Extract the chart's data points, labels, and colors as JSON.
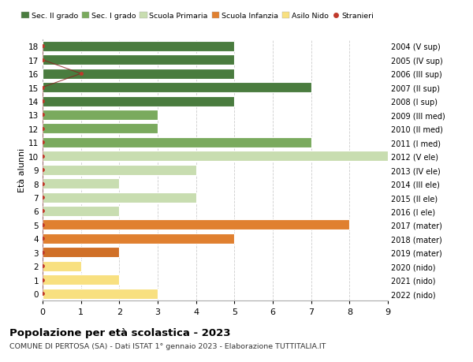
{
  "ages": [
    18,
    17,
    16,
    15,
    14,
    13,
    12,
    11,
    10,
    9,
    8,
    7,
    6,
    5,
    4,
    3,
    2,
    1,
    0
  ],
  "years": [
    "2004 (V sup)",
    "2005 (IV sup)",
    "2006 (III sup)",
    "2007 (II sup)",
    "2008 (I sup)",
    "2009 (III med)",
    "2010 (II med)",
    "2011 (I med)",
    "2012 (V ele)",
    "2013 (IV ele)",
    "2014 (III ele)",
    "2015 (II ele)",
    "2016 (I ele)",
    "2017 (mater)",
    "2018 (mater)",
    "2019 (mater)",
    "2020 (nido)",
    "2021 (nido)",
    "2022 (nido)"
  ],
  "bar_values": [
    5,
    5,
    5,
    7,
    5,
    3,
    3,
    7,
    9,
    4,
    2,
    4,
    2,
    8,
    5,
    2,
    1,
    2,
    3
  ],
  "bar_colors": [
    "#4a7c3f",
    "#4a7c3f",
    "#4a7c3f",
    "#4a7c3f",
    "#4a7c3f",
    "#7aaa5e",
    "#7aaa5e",
    "#7aaa5e",
    "#c8ddb0",
    "#c8ddb0",
    "#c8ddb0",
    "#c8ddb0",
    "#c8ddb0",
    "#e08030",
    "#e08030",
    "#d07028",
    "#f8e080",
    "#f8e080",
    "#f8e080"
  ],
  "stranieri_x": [
    0,
    0,
    1,
    0,
    0,
    0,
    0,
    0,
    0,
    0,
    0,
    0,
    0,
    0,
    0,
    0,
    0,
    0,
    0
  ],
  "stranieri_ages": [
    18,
    17,
    16,
    15,
    14,
    13,
    12,
    11,
    10,
    9,
    8,
    7,
    6,
    5,
    4,
    3,
    2,
    1,
    0
  ],
  "legend_labels": [
    "Sec. II grado",
    "Sec. I grado",
    "Scuola Primaria",
    "Scuola Infanzia",
    "Asilo Nido",
    "Stranieri"
  ],
  "legend_colors": [
    "#4a7c3f",
    "#7aaa5e",
    "#c8ddb0",
    "#e08030",
    "#f8e080",
    "#c0392b"
  ],
  "title": "Popolazione per età scolastica - 2023",
  "subtitle": "COMUNE DI PERTOSA (SA) - Dati ISTAT 1° gennaio 2023 - Elaborazione TUTTITALIA.IT",
  "ylabel_left": "Età alunni",
  "xlim": [
    0,
    9
  ],
  "ylim": [
    -0.5,
    18.5
  ],
  "bg_color": "#ffffff",
  "grid_color": "#cccccc",
  "bar_height": 0.75
}
